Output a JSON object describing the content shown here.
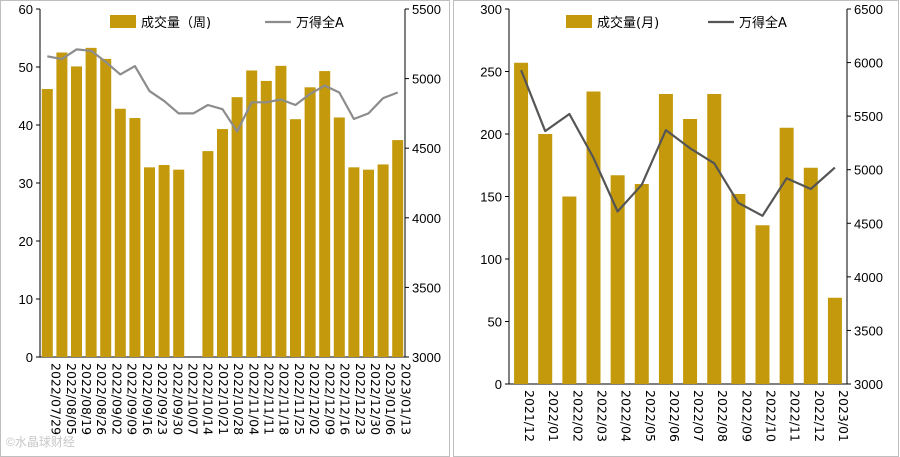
{
  "colors": {
    "bar": "#c49a0c",
    "weekly_line": "#8c8c8c",
    "monthly_line": "#555555"
  },
  "watermark": "©水晶球财经",
  "chart_data": [
    {
      "type": "bar",
      "x": [
        "2022/07/29",
        "2022/08/05",
        "2022/08/12",
        "2022/08/19",
        "2022/08/26",
        "2022/09/02",
        "2022/09/09",
        "2022/09/16",
        "2022/09/23",
        "2022/09/30",
        "2022/10/07",
        "2022/10/14",
        "2022/10/21",
        "2022/10/28",
        "2022/11/04",
        "2022/11/11",
        "2022/11/18",
        "2022/11/25",
        "2022/12/02",
        "2022/12/09",
        "2022/12/16",
        "2022/12/23",
        "2022/12/30",
        "2023/01/06",
        "2023/01/13"
      ],
      "xticks": [
        "2022/07/29",
        "2022/08/05",
        "2022/08/19",
        "2022/08/26",
        "2022/09/02",
        "2022/09/09",
        "2022/09/16",
        "2022/09/23",
        "2022/09/30",
        "2022/10/07",
        "2022/10/14",
        "2022/10/21",
        "2022/10/28",
        "2022/11/04",
        "2022/11/11",
        "2022/11/18",
        "2022/11/25",
        "2022/12/02",
        "2022/12/09",
        "2022/12/16",
        "2022/12/23",
        "2022/12/30",
        "2023/01/06",
        "2023/01/13"
      ],
      "series": [
        {
          "name": "成交量（周)",
          "kind": "bar",
          "axis": "left",
          "values": [
            46.2,
            52.5,
            50.1,
            53.3,
            51.4,
            42.8,
            41.2,
            32.7,
            33.1,
            32.3,
            0,
            35.5,
            39.3,
            44.8,
            49.4,
            47.6,
            50.2,
            41.0,
            46.5,
            49.3,
            41.3,
            32.7,
            32.3,
            33.2,
            37.4
          ]
        },
        {
          "name": "万得全A",
          "kind": "line",
          "axis": "right",
          "values": [
            5160,
            5140,
            5210,
            5200,
            5120,
            5030,
            5090,
            4910,
            4840,
            4750,
            4750,
            4810,
            4780,
            4620,
            4830,
            4830,
            4850,
            4810,
            4890,
            4950,
            4900,
            4710,
            4750,
            4860,
            4900
          ]
        }
      ],
      "ylim_left": [
        0,
        60
      ],
      "yticks_left": [
        0,
        10,
        20,
        30,
        40,
        50,
        60
      ],
      "ylim_right": [
        3000,
        5500
      ],
      "yticks_right": [
        3000,
        3500,
        4000,
        4500,
        5000,
        5500
      ],
      "legend": "top",
      "grid": false
    },
    {
      "type": "bar",
      "x": [
        "2021/12",
        "2022/01",
        "2022/02",
        "2022/03",
        "2022/04",
        "2022/05",
        "2022/06",
        "2022/07",
        "2022/08",
        "2022/09",
        "2022/10",
        "2022/11",
        "2022/12",
        "2023/01"
      ],
      "series": [
        {
          "name": "成交量(月)",
          "kind": "bar",
          "axis": "left",
          "values": [
            257,
            200,
            150,
            234,
            167,
            160,
            232,
            212,
            232,
            152,
            127,
            205,
            173,
            69
          ]
        },
        {
          "name": "万得全A",
          "kind": "line",
          "axis": "right",
          "values": [
            5930,
            5360,
            5520,
            5110,
            4610,
            4860,
            5370,
            5200,
            5060,
            4690,
            4570,
            4920,
            4820,
            5020
          ]
        }
      ],
      "ylim_left": [
        0,
        300
      ],
      "yticks_left": [
        0,
        50,
        100,
        150,
        200,
        250,
        300
      ],
      "ylim_right": [
        3000,
        6500
      ],
      "yticks_right": [
        3000,
        3500,
        4000,
        4500,
        5000,
        5500,
        6000,
        6500
      ],
      "legend": "top",
      "grid": false
    }
  ]
}
